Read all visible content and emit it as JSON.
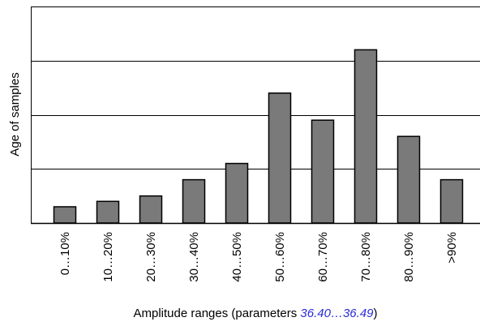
{
  "chart_data": {
    "type": "bar",
    "title": "",
    "ylabel": "Age of samples",
    "xlabel": {
      "prefix": "Amplitude ranges (parameters ",
      "param_start": "36.40",
      "ellipsis": "…",
      "param_end": "36.49",
      "suffix": ")"
    },
    "categories": [
      "0…10%",
      "10…20%",
      "20…30%",
      "30…40%",
      "40…50%",
      "50…60%",
      "60…70%",
      "70…80%",
      "80…90%",
      ">90%"
    ],
    "values": [
      0.3,
      0.4,
      0.5,
      0.8,
      1.1,
      2.4,
      1.9,
      3.2,
      1.6,
      0.8
    ],
    "ylim": [
      0,
      4
    ],
    "y_gridlines": [
      1,
      2,
      3,
      4
    ],
    "y_tick_labels_shown": false,
    "grid": true,
    "colors": {
      "bar_fill": "#7a7a7a",
      "bar_stroke": "#000000",
      "axis": "#000000",
      "xlabel_params": "#2b2bd6"
    }
  }
}
